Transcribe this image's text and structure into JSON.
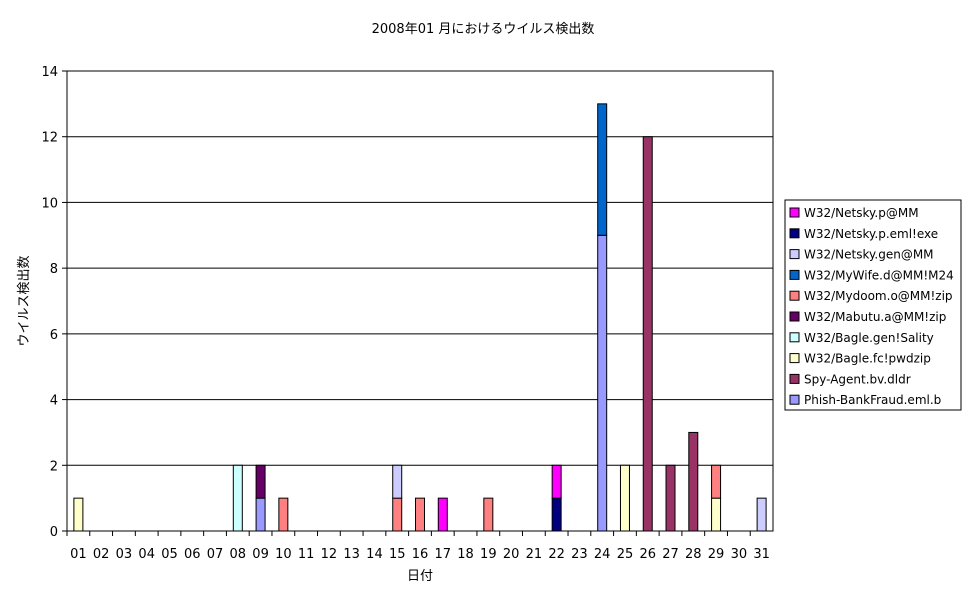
{
  "chart_data": {
    "type": "bar",
    "stacked": true,
    "title": "2008年01 月におけるウイルス検出数",
    "xlabel": "日付",
    "ylabel": "ウイルス検出数",
    "ylim": [
      0,
      14
    ],
    "yticks": [
      0,
      2,
      4,
      6,
      8,
      10,
      12,
      14
    ],
    "grid": true,
    "legend_position": "right",
    "categories": [
      "01",
      "02",
      "03",
      "04",
      "05",
      "06",
      "07",
      "08",
      "09",
      "10",
      "11",
      "12",
      "13",
      "14",
      "15",
      "16",
      "17",
      "18",
      "19",
      "20",
      "21",
      "22",
      "23",
      "24",
      "25",
      "26",
      "27",
      "28",
      "29",
      "30",
      "31"
    ],
    "series": [
      {
        "name": "W32/Netsky.p@MM",
        "color": "#ff00ff",
        "values": [
          0,
          0,
          0,
          0,
          0,
          0,
          0,
          0,
          0,
          0,
          0,
          0,
          0,
          0,
          0,
          0,
          1,
          0,
          0,
          0,
          0,
          1,
          0,
          0,
          0,
          0,
          0,
          0,
          0,
          0,
          0
        ]
      },
      {
        "name": "W32/Netsky.p.eml!exe",
        "color": "#000080",
        "values": [
          0,
          0,
          0,
          0,
          0,
          0,
          0,
          0,
          0,
          0,
          0,
          0,
          0,
          0,
          0,
          0,
          0,
          0,
          0,
          0,
          0,
          1,
          0,
          0,
          0,
          0,
          0,
          0,
          0,
          0,
          0
        ]
      },
      {
        "name": "W32/Netsky.gen@MM",
        "color": "#ccccff",
        "values": [
          0,
          0,
          0,
          0,
          0,
          0,
          0,
          0,
          0,
          0,
          0,
          0,
          0,
          0,
          1,
          0,
          0,
          0,
          0,
          0,
          0,
          0,
          0,
          0,
          0,
          0,
          0,
          0,
          0,
          0,
          1
        ]
      },
      {
        "name": "W32/MyWife.d@MM!M24",
        "color": "#0066cc",
        "values": [
          0,
          0,
          0,
          0,
          0,
          0,
          0,
          0,
          0,
          0,
          0,
          0,
          0,
          0,
          0,
          0,
          0,
          0,
          0,
          0,
          0,
          0,
          0,
          4,
          0,
          0,
          0,
          0,
          0,
          0,
          0
        ]
      },
      {
        "name": "W32/Mydoom.o@MM!zip",
        "color": "#ff8080",
        "values": [
          0,
          0,
          0,
          0,
          0,
          0,
          0,
          0,
          0,
          1,
          0,
          0,
          0,
          0,
          1,
          1,
          0,
          0,
          1,
          0,
          0,
          0,
          0,
          0,
          0,
          0,
          0,
          0,
          1,
          0,
          0
        ]
      },
      {
        "name": "W32/Mabutu.a@MM!zip",
        "color": "#660066",
        "values": [
          0,
          0,
          0,
          0,
          0,
          0,
          0,
          0,
          1,
          0,
          0,
          0,
          0,
          0,
          0,
          0,
          0,
          0,
          0,
          0,
          0,
          0,
          0,
          0,
          0,
          0,
          0,
          0,
          0,
          0,
          0
        ]
      },
      {
        "name": "W32/Bagle.gen!Sality",
        "color": "#ccffff",
        "values": [
          0,
          0,
          0,
          0,
          0,
          0,
          0,
          2,
          0,
          0,
          0,
          0,
          0,
          0,
          0,
          0,
          0,
          0,
          0,
          0,
          0,
          0,
          0,
          0,
          0,
          0,
          0,
          0,
          0,
          0,
          0
        ]
      },
      {
        "name": "W32/Bagle.fc!pwdzip",
        "color": "#ffffcc",
        "values": [
          1,
          0,
          0,
          0,
          0,
          0,
          0,
          0,
          0,
          0,
          0,
          0,
          0,
          0,
          0,
          0,
          0,
          0,
          0,
          0,
          0,
          0,
          0,
          0,
          2,
          0,
          0,
          0,
          1,
          0,
          0
        ]
      },
      {
        "name": "Spy-Agent.bv.dldr",
        "color": "#993366",
        "values": [
          0,
          0,
          0,
          0,
          0,
          0,
          0,
          0,
          0,
          0,
          0,
          0,
          0,
          0,
          0,
          0,
          0,
          0,
          0,
          0,
          0,
          0,
          0,
          0,
          0,
          12,
          2,
          3,
          0,
          0,
          0
        ]
      },
      {
        "name": "Phish-BankFraud.eml.b",
        "color": "#9999ff",
        "values": [
          0,
          0,
          0,
          0,
          0,
          0,
          0,
          0,
          1,
          0,
          0,
          0,
          0,
          0,
          0,
          0,
          0,
          0,
          0,
          0,
          0,
          0,
          0,
          9,
          0,
          0,
          0,
          0,
          0,
          0,
          0
        ]
      }
    ],
    "stack_order_bottom_to_top": [
      "Phish-BankFraud.eml.b",
      "Spy-Agent.bv.dldr",
      "W32/Bagle.fc!pwdzip",
      "W32/Bagle.gen!Sality",
      "W32/Mabutu.a@MM!zip",
      "W32/Mydoom.o@MM!zip",
      "W32/MyWife.d@MM!M24",
      "W32/Netsky.gen@MM",
      "W32/Netsky.p.eml!exe",
      "W32/Netsky.p@MM"
    ]
  }
}
